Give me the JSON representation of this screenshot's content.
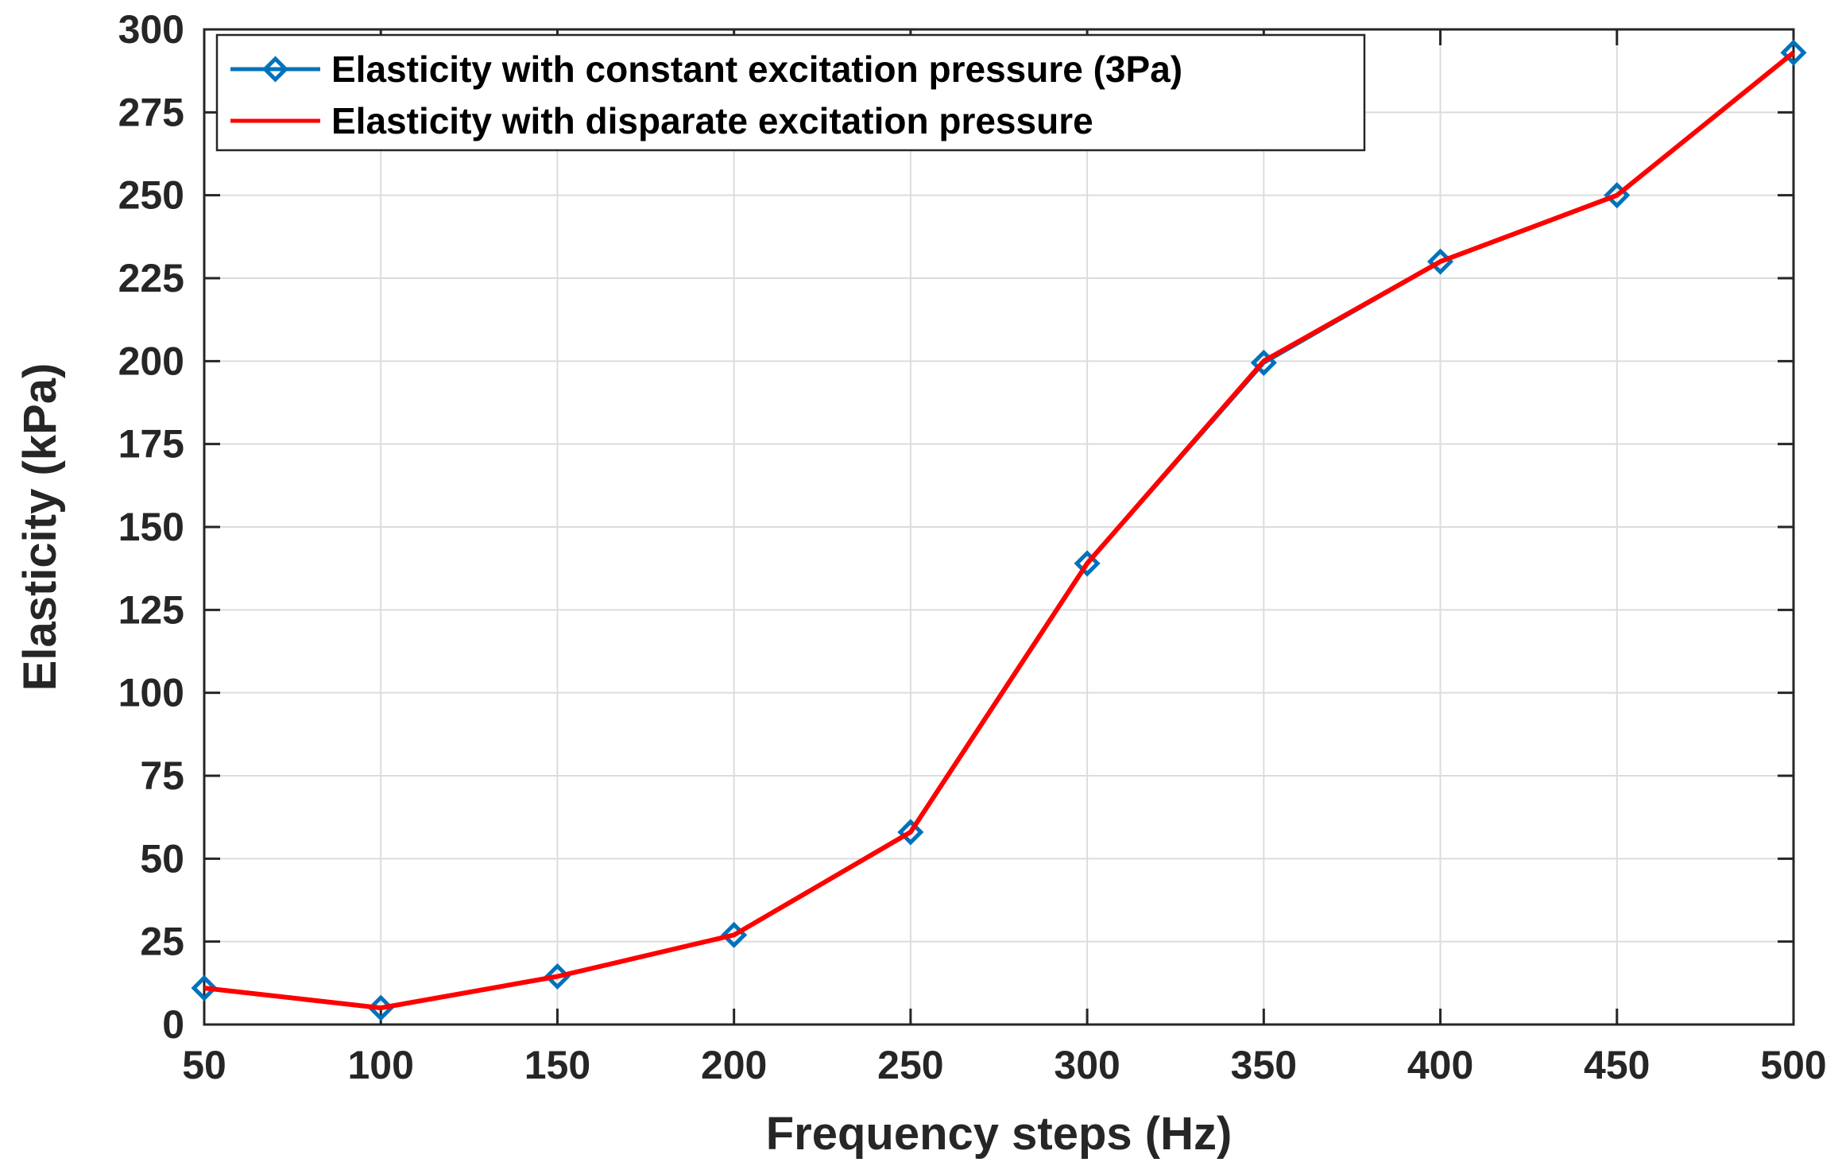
{
  "chart_data": {
    "type": "line",
    "title": "",
    "xlabel": "Frequency steps (Hz)",
    "ylabel": "Elasticity (kPa)",
    "xlim": [
      50,
      500
    ],
    "ylim": [
      0,
      300
    ],
    "x_ticks": [
      "50",
      "100",
      "150",
      "200",
      "250",
      "300",
      "350",
      "400",
      "450",
      "500"
    ],
    "y_ticks": [
      "0",
      "25",
      "50",
      "75",
      "100",
      "125",
      "150",
      "175",
      "200",
      "225",
      "250",
      "275",
      "300"
    ],
    "x": [
      50,
      100,
      150,
      200,
      250,
      300,
      350,
      400,
      450,
      500
    ],
    "grid": true,
    "legend_position": "top-left",
    "series": [
      {
        "name": "Elasticity with constant excitation pressure (3Pa)",
        "values": [
          11,
          5,
          14.5,
          27,
          58,
          139,
          199.5,
          230,
          250,
          293
        ],
        "color": "#0072BD",
        "marker": "diamond"
      },
      {
        "name": "Elasticity with disparate excitation pressure",
        "values": [
          11,
          5,
          14.5,
          27,
          58,
          139,
          200,
          230,
          250,
          293
        ],
        "color": "#FF0000",
        "marker": "none"
      }
    ]
  }
}
